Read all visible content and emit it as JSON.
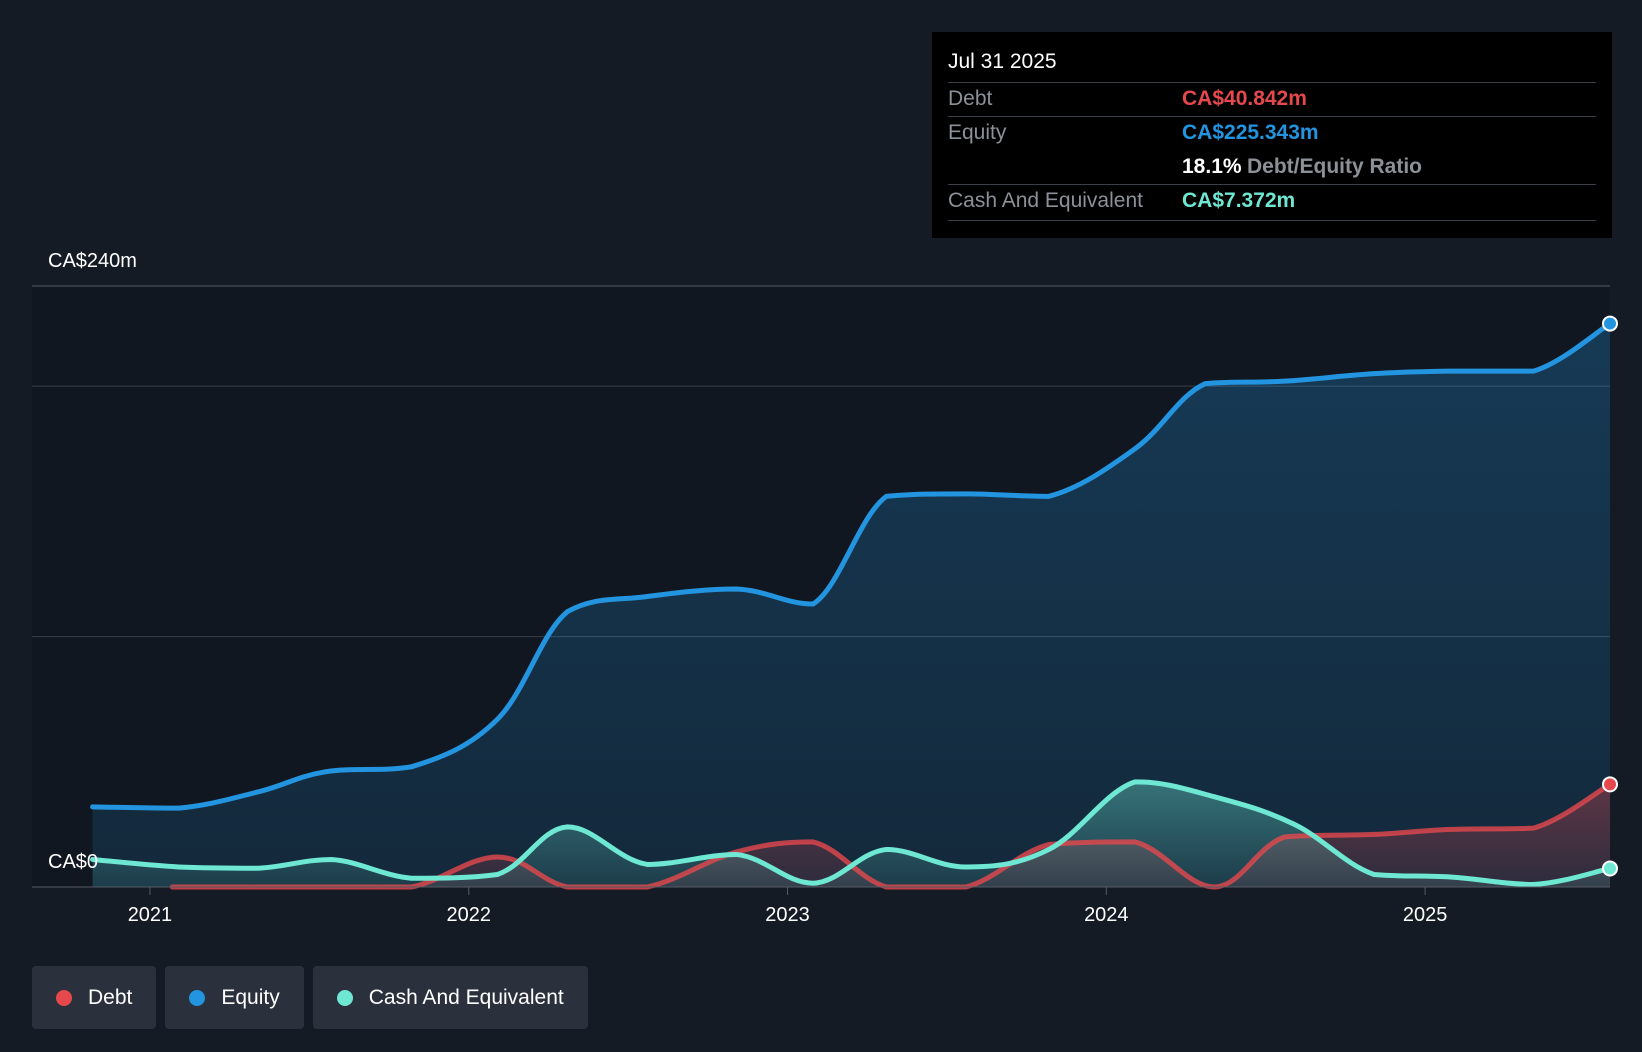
{
  "tooltip": {
    "date": "Jul 31 2025",
    "debt_label": "Debt",
    "debt_value": "CA$40.842m",
    "equity_label": "Equity",
    "equity_value": "CA$225.343m",
    "ratio_value": "18.1%",
    "ratio_label": "Debt/Equity Ratio",
    "cash_label": "Cash And Equivalent",
    "cash_value": "CA$7.372m"
  },
  "legend": {
    "debt": "Debt",
    "equity": "Equity",
    "cash": "Cash And Equivalent"
  },
  "colors": {
    "debt": "#e5484d",
    "equity": "#2394df",
    "cash": "#6ee7d3",
    "background": "#151b24",
    "plot_background": "#111720",
    "grid": "#3a404a"
  },
  "chart_data": {
    "type": "area",
    "title": "",
    "y_top_label": "CA$240m",
    "y_bottom_label": "CA$0",
    "ylim": [
      0,
      240
    ],
    "xlim": [
      2020.82,
      2025.58
    ],
    "x_ticks": [
      2021,
      2022,
      2023,
      2024,
      2025
    ],
    "x_tick_labels": [
      "2021",
      "2022",
      "2023",
      "2024",
      "2025"
    ],
    "grid": true,
    "legend_position": "bottom-left",
    "series": [
      {
        "name": "Equity",
        "key": "equity",
        "x": [
          2020.82,
          2021.09,
          2021.34,
          2021.55,
          2021.82,
          2022.09,
          2022.31,
          2022.56,
          2022.84,
          2023.08,
          2023.31,
          2023.56,
          2023.82,
          2024.09,
          2024.31,
          2024.56,
          2024.84,
          2025.08,
          2025.34,
          2025.58
        ],
        "values": [
          32,
          31.5,
          38,
          46,
          48,
          67,
          110,
          116,
          119,
          113,
          156,
          157,
          156,
          175,
          201,
          202,
          205,
          206,
          206,
          225
        ]
      },
      {
        "name": "Debt",
        "key": "debt",
        "x": [
          2021.07,
          2021.34,
          2021.57,
          2021.82,
          2022.09,
          2022.31,
          2022.56,
          2022.84,
          2023.08,
          2023.31,
          2023.56,
          2023.82,
          2024.09,
          2024.34,
          2024.56,
          2024.84,
          2025.08,
          2025.34,
          2025.58
        ],
        "values": [
          0,
          0,
          0,
          0,
          12,
          0,
          0,
          14,
          18,
          0,
          0,
          17,
          18,
          0,
          20,
          21,
          23,
          23.5,
          41
        ]
      },
      {
        "name": "Cash And Equivalent",
        "key": "cash",
        "x": [
          2020.82,
          2021.09,
          2021.34,
          2021.57,
          2021.82,
          2022.09,
          2022.31,
          2022.56,
          2022.84,
          2023.08,
          2023.31,
          2023.56,
          2023.82,
          2024.09,
          2024.34,
          2024.59,
          2024.84,
          2025.08,
          2025.34,
          2025.58
        ],
        "values": [
          11,
          8,
          7.5,
          11,
          3.5,
          5,
          24,
          9,
          13,
          1.5,
          15,
          8,
          15,
          42,
          36,
          25,
          5,
          4,
          1,
          7.4
        ]
      }
    ]
  }
}
